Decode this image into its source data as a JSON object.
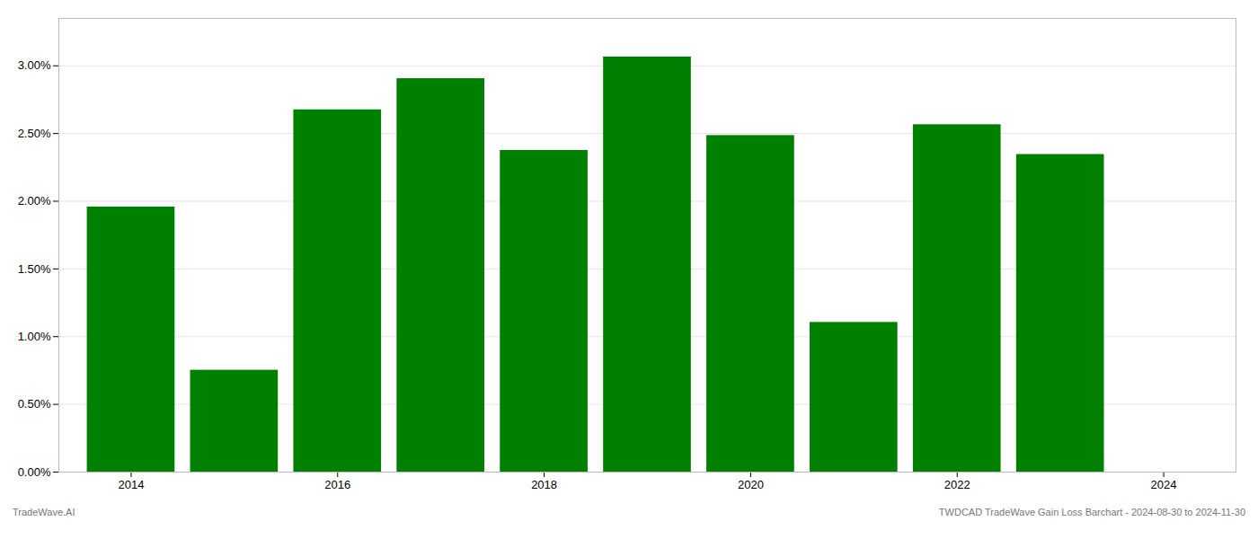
{
  "chart_data": {
    "type": "bar",
    "x": [
      2014,
      2015,
      2016,
      2017,
      2018,
      2019,
      2020,
      2021,
      2022,
      2023
    ],
    "values": [
      0.01957,
      0.00752,
      0.02675,
      0.02905,
      0.02375,
      0.03065,
      0.02485,
      0.01105,
      0.02565,
      0.02345
    ],
    "color": "#008000",
    "xlim": [
      2013.3,
      2024.7
    ],
    "xticks": [
      2014,
      2016,
      2018,
      2020,
      2022,
      2024
    ],
    "ylim": [
      0,
      0.0335
    ],
    "yticks": [
      {
        "value": 0.0,
        "label": "0.00%"
      },
      {
        "value": 0.005,
        "label": "0.50%"
      },
      {
        "value": 0.01,
        "label": "1.00%"
      },
      {
        "value": 0.015,
        "label": "1.50%"
      },
      {
        "value": 0.02,
        "label": "2.00%"
      },
      {
        "value": 0.025,
        "label": "2.50%"
      },
      {
        "value": 0.03,
        "label": "3.00%"
      }
    ],
    "grid": true,
    "annotations": [
      "TradeWave.AI",
      "TWDCAD TradeWave Gain Loss Barchart - 2024-08-30 to 2024-11-30"
    ]
  }
}
